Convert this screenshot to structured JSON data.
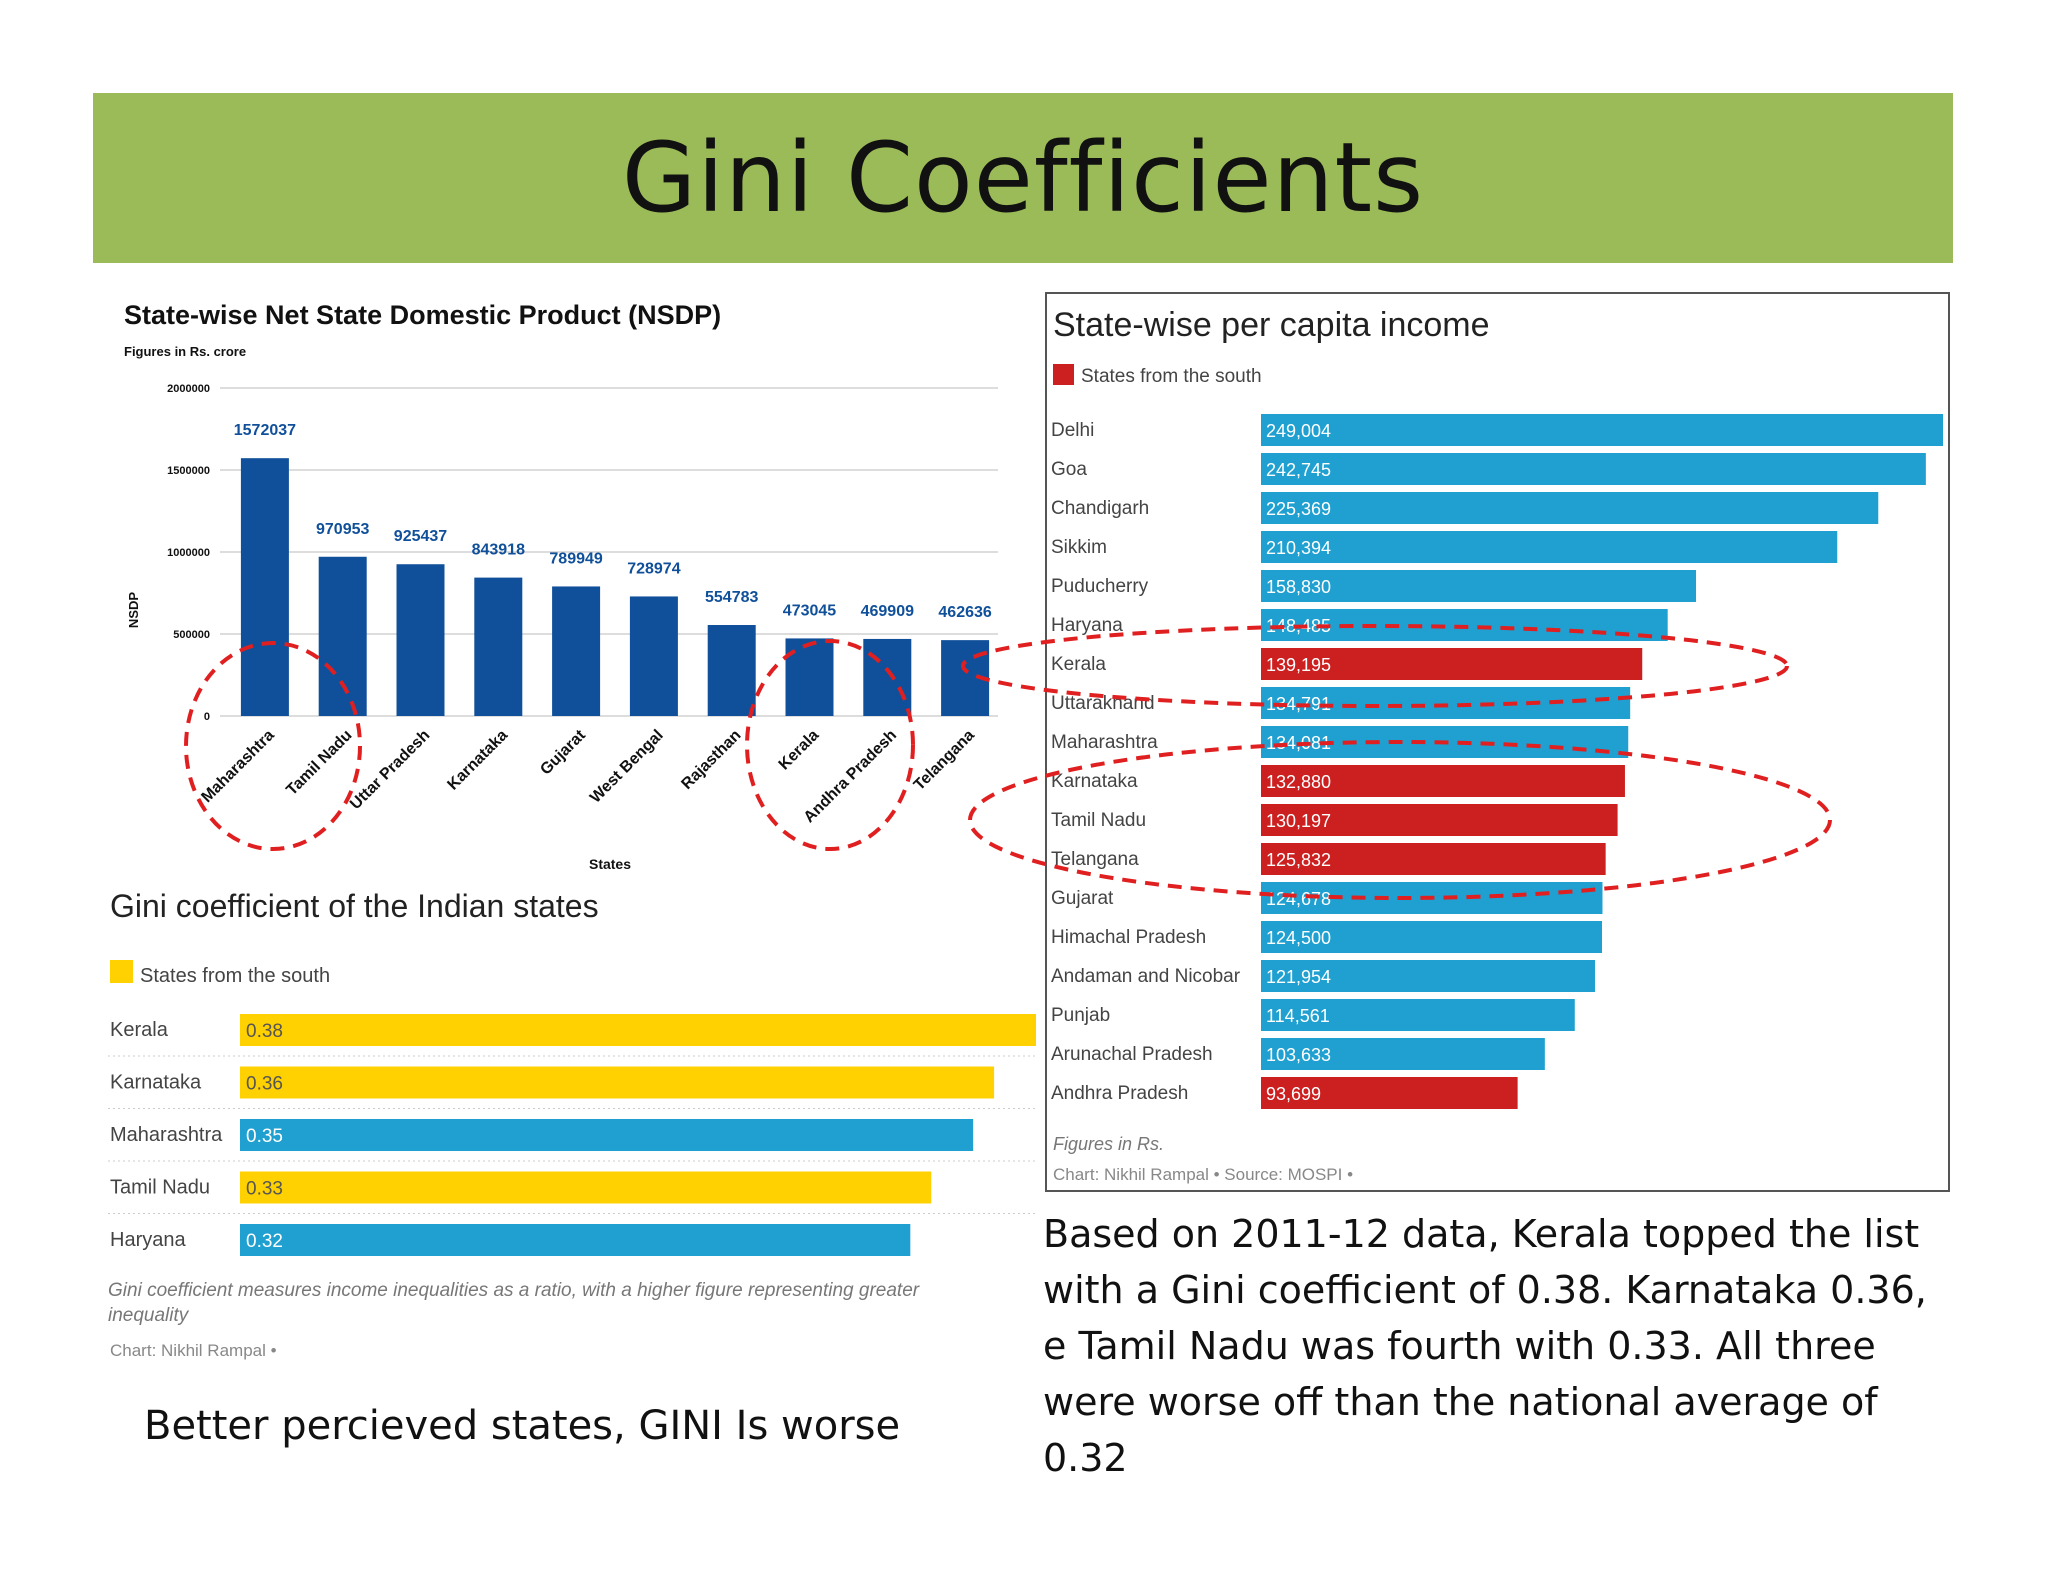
{
  "slide": {
    "title": "Gini Coefficients",
    "caption_left": "Better percieved states, GINI Is worse",
    "caption_right": "Based on 2011-12 data, Kerala topped the list with a Gini coefficient of 0.38. Karnataka 0.36, e Tamil Nadu was fourth with 0.33. All three were worse off than the national average of 0.32"
  },
  "chart_data": [
    {
      "type": "bar",
      "title": "State-wise Net State Domestic Product (NSDP)",
      "subtitle": "Figures in Rs. crore",
      "xlabel": "States",
      "ylabel": "NSDP",
      "ylim": [
        0,
        2000000
      ],
      "yticks": [
        "0",
        "500000",
        "1000000",
        "1500000",
        "2000000"
      ],
      "grid": true,
      "colors": {
        "bar": "#10509a",
        "label": "#10509a",
        "highlight_circle": "#e02020"
      },
      "categories": [
        "Maharashtra",
        "Tamil Nadu",
        "Uttar Pradesh",
        "Karnataka",
        "Gujarat",
        "West Bengal",
        "Rajasthan",
        "Kerala",
        "Andhra Pradesh",
        "Telangana"
      ],
      "values": [
        1572037,
        970953,
        925437,
        843918,
        789949,
        728974,
        554783,
        473045,
        469909,
        462636
      ],
      "value_labels": [
        "1572037",
        "970953",
        "925437",
        "843918",
        "789949",
        "728974",
        "554783",
        "473045",
        "469909",
        "462636"
      ]
    },
    {
      "type": "bar",
      "orientation": "horizontal",
      "title": "Gini coefficient of the Indian states",
      "legend": "States from the south",
      "colors": {
        "south": "#ffd100",
        "other": "#1fa0d0"
      },
      "categories": [
        "Kerala",
        "Karnataka",
        "Maharashtra",
        "Tamil Nadu",
        "Haryana"
      ],
      "values": [
        0.38,
        0.36,
        0.35,
        0.33,
        0.32
      ],
      "value_labels": [
        "0.38",
        "0.36",
        "0.35",
        "0.33",
        "0.32"
      ],
      "south": [
        true,
        true,
        false,
        true,
        false
      ],
      "xlim": [
        0,
        0.38
      ],
      "note": "Gini coefficient measures income inequalities as a ratio, with a higher figure representing greater inequality",
      "credit": "Chart: Nikhil Rampal •"
    },
    {
      "type": "bar",
      "orientation": "horizontal",
      "title": "State-wise per capita income",
      "legend": "States from the south",
      "colors": {
        "south": "#cc1f1f",
        "other": "#1fa0d0"
      },
      "categories": [
        "Delhi",
        "Goa",
        "Chandigarh",
        "Sikkim",
        "Puducherry",
        "Haryana",
        "Kerala",
        "Uttarakhand",
        "Maharashtra",
        "Karnataka",
        "Tamil Nadu",
        "Telangana",
        "Gujarat",
        "Himachal Pradesh",
        "Andaman and Nicobar",
        "Punjab",
        "Arunachal Pradesh",
        "Andhra Pradesh"
      ],
      "values": [
        249004,
        242745,
        225369,
        210394,
        158830,
        148485,
        139195,
        134791,
        134081,
        132880,
        130197,
        125832,
        124678,
        124500,
        121954,
        114561,
        103633,
        93699
      ],
      "value_labels": [
        "249,004",
        "242,745",
        "225,369",
        "210,394",
        "158,830",
        "148,485",
        "139,195",
        "134,791",
        "134,081",
        "132,880",
        "130,197",
        "125,832",
        "124,678",
        "124,500",
        "121,954",
        "114,561",
        "103,633",
        "93,699"
      ],
      "south": [
        false,
        false,
        false,
        false,
        false,
        false,
        true,
        false,
        false,
        true,
        true,
        true,
        false,
        false,
        false,
        false,
        false,
        true
      ],
      "xlim": [
        0,
        249004
      ],
      "footnote": "Figures in Rs.",
      "credit": "Chart: Nikhil Rampal • Source: MOSPI •"
    }
  ]
}
